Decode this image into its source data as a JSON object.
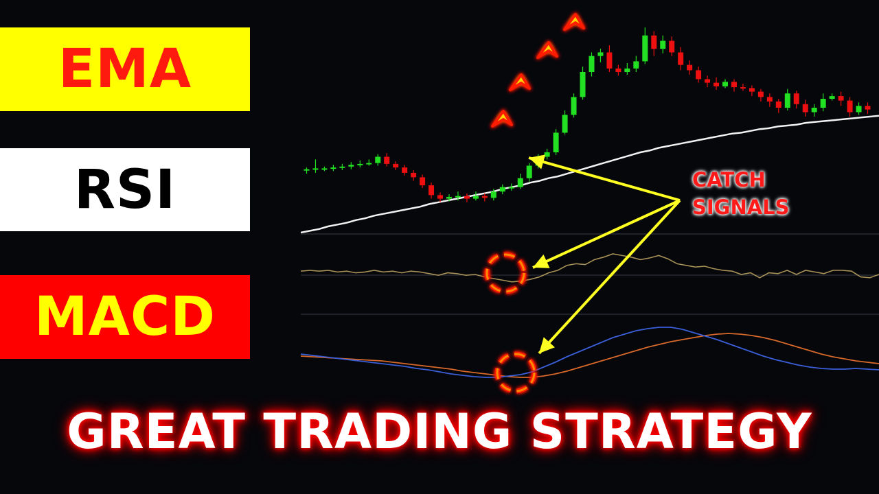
{
  "labels": {
    "ema": "EMA",
    "rsi": "RSI",
    "macd": "MACD"
  },
  "annotation": {
    "line1": "CATCH",
    "line2": "SIGNALS"
  },
  "headline": "GREAT TRADING STRATEGY",
  "colors": {
    "bullish": "#22e022",
    "bearish": "#ee1010",
    "ema_line": "#f2f2f2",
    "rsi_line": "#a89258",
    "macd_line": "#3a5fd8",
    "signal_line": "#d8692a",
    "arrow": "#ffff22",
    "signal_circle": "#ff8a00"
  },
  "chart_data": [
    {
      "type": "candlestick",
      "panel": "price",
      "ohlc": [
        [
          191,
          191,
          186,
          193
        ],
        [
          191,
          192,
          187,
          202
        ],
        [
          192,
          192,
          189,
          194
        ],
        [
          192,
          193,
          189,
          196
        ],
        [
          193,
          194,
          190,
          197
        ],
        [
          194,
          196,
          191,
          199
        ],
        [
          196,
          197,
          193,
          201
        ],
        [
          197,
          198,
          195,
          202
        ],
        [
          198,
          205,
          195,
          208
        ],
        [
          205,
          197,
          194,
          209
        ],
        [
          197,
          193,
          190,
          200
        ],
        [
          193,
          187,
          184,
          196
        ],
        [
          187,
          182,
          178,
          190
        ],
        [
          182,
          173,
          170,
          185
        ],
        [
          173,
          162,
          158,
          176
        ],
        [
          162,
          158,
          154,
          165
        ],
        [
          158,
          160,
          155,
          163
        ],
        [
          160,
          161,
          156,
          166
        ],
        [
          161,
          158,
          154,
          164
        ],
        [
          158,
          161,
          156,
          166
        ],
        [
          161,
          159,
          155,
          164
        ],
        [
          159,
          166,
          156,
          169
        ],
        [
          166,
          171,
          163,
          174
        ],
        [
          171,
          171,
          167,
          175
        ],
        [
          171,
          181,
          169,
          186
        ],
        [
          181,
          195,
          177,
          198
        ],
        [
          195,
          205,
          192,
          208
        ],
        [
          205,
          210,
          202,
          214
        ],
        [
          210,
          232,
          207,
          236
        ],
        [
          232,
          252,
          230,
          257
        ],
        [
          252,
          272,
          249,
          276
        ],
        [
          272,
          300,
          269,
          306
        ],
        [
          300,
          318,
          295,
          322
        ],
        [
          318,
          322,
          311,
          326
        ],
        [
          322,
          304,
          300,
          330
        ],
        [
          304,
          300,
          296,
          308
        ],
        [
          300,
          304,
          297,
          310
        ],
        [
          304,
          312,
          300,
          318
        ],
        [
          312,
          341,
          309,
          350
        ],
        [
          341,
          326,
          318,
          346
        ],
        [
          326,
          335,
          321,
          341
        ],
        [
          335,
          322,
          318,
          340
        ],
        [
          322,
          308,
          302,
          328
        ],
        [
          308,
          302,
          297,
          313
        ],
        [
          302,
          292,
          288,
          306
        ],
        [
          292,
          288,
          283,
          296
        ],
        [
          288,
          284,
          280,
          294
        ],
        [
          284,
          289,
          282,
          292
        ],
        [
          289,
          283,
          278,
          292
        ],
        [
          283,
          282,
          279,
          287
        ],
        [
          282,
          278,
          273,
          285
        ],
        [
          278,
          272,
          267,
          281
        ],
        [
          272,
          267,
          261,
          276
        ],
        [
          267,
          260,
          254,
          270
        ],
        [
          260,
          276,
          257,
          281
        ],
        [
          276,
          264,
          259,
          279
        ],
        [
          264,
          255,
          250,
          269
        ],
        [
          255,
          260,
          250,
          264
        ],
        [
          260,
          270,
          256,
          276
        ],
        [
          270,
          273,
          268,
          276
        ],
        [
          273,
          268,
          262,
          278
        ],
        [
          268,
          255,
          250,
          272
        ],
        [
          255,
          262,
          252,
          266
        ],
        [
          262,
          258,
          253,
          266
        ]
      ]
    },
    {
      "type": "line",
      "panel": "price",
      "name": "EMA",
      "values": [
        120,
        122,
        124,
        127,
        129,
        131,
        134,
        136,
        139,
        141,
        143,
        145,
        147,
        149,
        152,
        154,
        156,
        158,
        160,
        162,
        164,
        166,
        169,
        171,
        173,
        176,
        178,
        181,
        183,
        186,
        189,
        192,
        195,
        198,
        201,
        204,
        207,
        210,
        212,
        215,
        217,
        219,
        221,
        223,
        225,
        227,
        229,
        231,
        232,
        234,
        236,
        237,
        239,
        240,
        241,
        243,
        244,
        245,
        246,
        247,
        248,
        249,
        250,
        251
      ]
    },
    {
      "type": "line",
      "panel": "RSI",
      "name": "RSI",
      "values": [
        49,
        50,
        49,
        50,
        48,
        49,
        47,
        48,
        50,
        48,
        49,
        47,
        49,
        48,
        46,
        44,
        47,
        46,
        44,
        45,
        42,
        40,
        38,
        36,
        37,
        39,
        42,
        47,
        50,
        56,
        58,
        57,
        63,
        66,
        70,
        68,
        66,
        63,
        65,
        68,
        64,
        58,
        56,
        54,
        55,
        52,
        50,
        49,
        45,
        47,
        41,
        47,
        46,
        50,
        45,
        50,
        48,
        46,
        50,
        50,
        49,
        42,
        41,
        45
      ]
    },
    {
      "type": "line",
      "panel": "MACD",
      "name": "MACD",
      "values": [
        4,
        2,
        0,
        -2,
        -4,
        -6,
        -8,
        -10,
        -12,
        -14,
        -17,
        -19,
        -22,
        -25,
        -27,
        -29,
        -30,
        -30,
        -28,
        -26,
        -22,
        -15,
        -8,
        0,
        7,
        14,
        21,
        28,
        33,
        38,
        41,
        43,
        43,
        40,
        35,
        30,
        25,
        19,
        13,
        7,
        1,
        -4,
        -8,
        -12,
        -15,
        -17,
        -18,
        -18,
        -17,
        -18,
        -19
      ]
    },
    {
      "type": "line",
      "panel": "MACD",
      "name": "Signal",
      "values": [
        1,
        0,
        -1,
        -2,
        -3,
        -4,
        -5,
        -6,
        -8,
        -10,
        -12,
        -14,
        -16,
        -18,
        -21,
        -23,
        -25,
        -27,
        -29,
        -30,
        -30,
        -28,
        -25,
        -21,
        -16,
        -11,
        -6,
        -1,
        4,
        9,
        14,
        18,
        22,
        25,
        28,
        31,
        33,
        34,
        33,
        31,
        28,
        24,
        19,
        14,
        9,
        4,
        0,
        -3,
        -6,
        -8,
        -10
      ]
    }
  ]
}
